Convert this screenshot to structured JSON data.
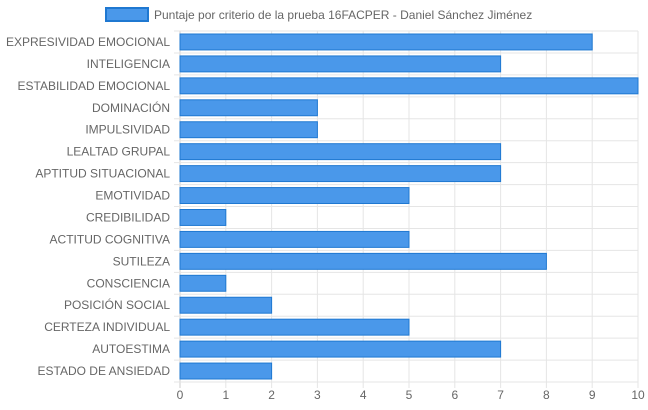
{
  "chart_data": {
    "type": "bar",
    "orientation": "horizontal",
    "categories": [
      "EXPRESIVIDAD EMOCIONAL",
      "INTELIGENCIA",
      "ESTABILIDAD EMOCIONAL",
      "DOMINACIÓN",
      "IMPULSIVIDAD",
      "LEALTAD GRUPAL",
      "APTITUD SITUACIONAL",
      "EMOTIVIDAD",
      "CREDIBILIDAD",
      "ACTITUD COGNITIVA",
      "SUTILEZA",
      "CONSCIENCIA",
      "POSICIÓN SOCIAL",
      "CERTEZA INDIVIDUAL",
      "AUTOESTIMA",
      "ESTADO DE ANSIEDAD"
    ],
    "series": [
      {
        "name": "Puntaje por criterio de la prueba 16FACPER - Daniel Sánchez Jiménez",
        "values": [
          9,
          7,
          10,
          3,
          3,
          7,
          7,
          5,
          1,
          5,
          8,
          1,
          2,
          5,
          7,
          2
        ]
      }
    ],
    "xlim": [
      0,
      10
    ],
    "xticks": [
      "0",
      "1",
      "2",
      "3",
      "4",
      "5",
      "6",
      "7",
      "8",
      "9",
      "10"
    ],
    "grid": true,
    "legend_position": "top",
    "colors": {
      "bar_fill": "#4a98ea",
      "bar_stroke": "#1f78d1",
      "grid": "#e5e5e5",
      "text": "#666666"
    }
  }
}
